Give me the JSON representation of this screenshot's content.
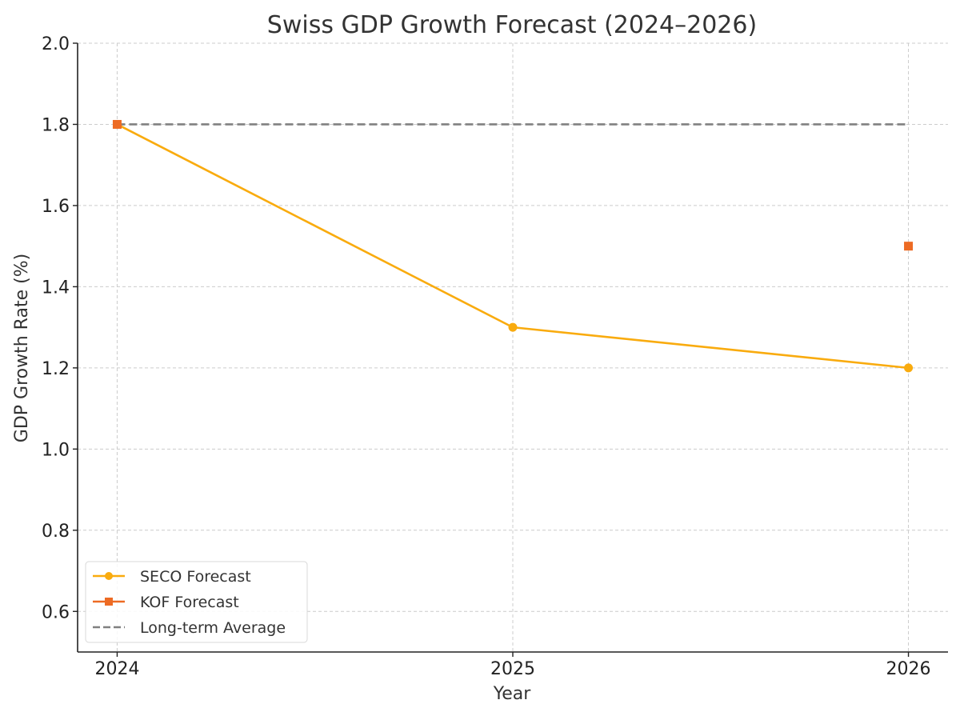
{
  "chart_data": {
    "type": "line",
    "title": "Swiss GDP Growth Forecast (2024–2026)",
    "xlabel": "Year",
    "ylabel": "GDP Growth Rate (%)",
    "x": [
      2024,
      2025,
      2026
    ],
    "x_tick_labels": [
      "2024",
      "2025",
      "2026"
    ],
    "xlim": [
      2023.9,
      2026.1
    ],
    "ylim": [
      0.5,
      2.0
    ],
    "y_ticks": [
      0.6,
      0.8,
      1.0,
      1.2,
      1.4,
      1.6,
      1.8,
      2.0
    ],
    "y_tick_labels": [
      "0.6",
      "0.8",
      "1.0",
      "1.2",
      "1.4",
      "1.6",
      "1.8",
      "2.0"
    ],
    "grid": true,
    "legend_position": "bottom-left",
    "series": [
      {
        "name": "SECO Forecast",
        "values": [
          1.8,
          1.3,
          1.2
        ],
        "color": "#F9AB0E",
        "marker": "circle",
        "line": "solid"
      },
      {
        "name": "KOF Forecast",
        "x": [
          2024,
          2026
        ],
        "values": [
          1.8,
          1.5
        ],
        "color": "#ED6B24",
        "marker": "square",
        "line": "none"
      },
      {
        "name": "Long-term Average",
        "values": [
          1.8,
          1.8,
          1.8
        ],
        "color": "#808080",
        "marker": "none",
        "line": "dashed"
      }
    ]
  }
}
